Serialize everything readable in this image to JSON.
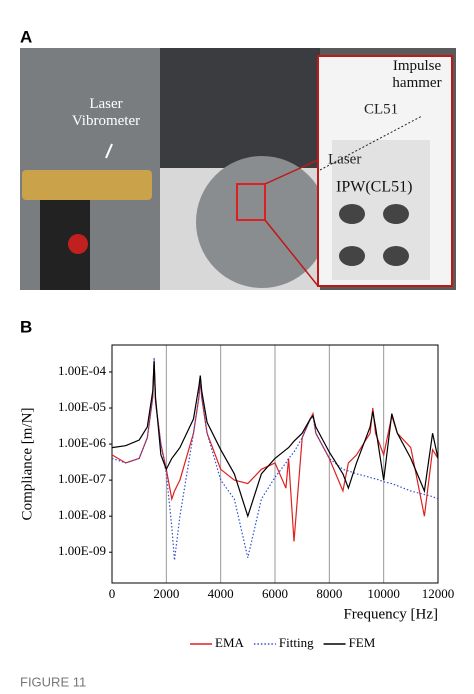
{
  "panel_a": {
    "label": "A",
    "laser_vibrometer": "Laser Vibrometer",
    "impulse_hammer": "Impulse hammer",
    "cl51": "CL51",
    "laser": "Laser",
    "ipw": "IPW(CL51)"
  },
  "panel_b": {
    "label": "B"
  },
  "caption": "FIGURE 11",
  "chart_data": {
    "type": "line",
    "x_label": "Frequency [Hz]",
    "y_label": "Compliance [m/N]",
    "log_y": true,
    "xlim": [
      0,
      12000
    ],
    "xticks": [
      0,
      2000,
      4000,
      6000,
      8000,
      10000,
      12000
    ],
    "ylim": [
      1.4e-10,
      0.00056
    ],
    "yticks": [
      {
        "value": 1e-09,
        "label": "1.00E-09"
      },
      {
        "value": 1e-08,
        "label": "1.00E-08"
      },
      {
        "value": 1e-07,
        "label": "1.00E-07"
      },
      {
        "value": 1e-06,
        "label": "1.00E-06"
      },
      {
        "value": 1e-05,
        "label": "1.00E-05"
      },
      {
        "value": 0.0001,
        "label": "1.00E-04"
      }
    ],
    "grid": "x",
    "grid_color": "#999999",
    "legend": "bottom",
    "x": [
      0,
      500,
      1000,
      1300,
      1500,
      1550,
      1600,
      1800,
      2000,
      2200,
      2300,
      2500,
      3000,
      3200,
      3250,
      3300,
      3500,
      4000,
      4500,
      5000,
      5500,
      6000,
      6400,
      6500,
      6700,
      7000,
      7300,
      7400,
      7500,
      8000,
      8500,
      8700,
      9000,
      9500,
      9600,
      9700,
      10000,
      10300,
      10500,
      11000,
      11500,
      11800,
      12000
    ],
    "series": [
      {
        "name": "EMA",
        "color": "#e02020",
        "line_style": "solid",
        "values": [
          5e-07,
          3e-07,
          4e-07,
          1.5e-06,
          2e-05,
          0.0002,
          1.5e-05,
          1e-06,
          2e-07,
          3e-08,
          5e-08,
          1e-07,
          2e-06,
          2e-05,
          6e-05,
          2e-05,
          2e-06,
          2e-07,
          1e-07,
          8e-08,
          2e-07,
          3e-07,
          6e-08,
          4e-07,
          2e-09,
          1.5e-06,
          5e-06,
          7e-06,
          2e-06,
          4e-07,
          5e-08,
          3e-07,
          5e-07,
          2e-06,
          1e-05,
          2e-06,
          5e-07,
          6e-06,
          2e-06,
          8e-07,
          1e-08,
          7e-07,
          4e-07
        ]
      },
      {
        "name": "Fitting",
        "color": "#3050d0",
        "line_style": "dotted",
        "values": [
          4e-07,
          3e-07,
          4e-07,
          1.5e-06,
          2e-05,
          0.00025,
          1.5e-05,
          1e-06,
          1.5e-07,
          5e-09,
          6e-10,
          1e-08,
          2e-06,
          2e-05,
          7e-05,
          2e-05,
          2e-06,
          1e-07,
          3e-08,
          7e-10,
          3e-08,
          1.2e-07,
          3e-07,
          4e-07,
          6e-07,
          1.5e-06,
          5e-06,
          6e-06,
          2e-06,
          4e-07,
          2e-07,
          1.8e-07,
          1.5e-07,
          1.2e-07,
          1.1e-07,
          1.1e-07,
          9e-08,
          8e-08,
          7e-08,
          5e-08,
          4e-08,
          3.5e-08,
          3e-08
        ]
      },
      {
        "name": "FEM",
        "color": "#000000",
        "line_style": "solid",
        "values": [
          8e-07,
          9e-07,
          1.3e-06,
          3e-06,
          3e-05,
          0.0002,
          2e-05,
          5e-07,
          2e-07,
          4e-07,
          5e-07,
          8e-07,
          5e-06,
          4e-05,
          8e-05,
          3e-05,
          4e-06,
          7e-07,
          1.5e-07,
          1e-08,
          1.5e-07,
          4e-07,
          7e-07,
          8e-07,
          1.2e-06,
          2e-06,
          5e-06,
          6e-06,
          3e-06,
          6e-07,
          1.5e-07,
          6e-08,
          3e-07,
          3e-06,
          8e-06,
          3e-06,
          1e-07,
          7e-06,
          2e-06,
          4e-07,
          5e-08,
          2e-06,
          4e-07
        ]
      }
    ]
  }
}
